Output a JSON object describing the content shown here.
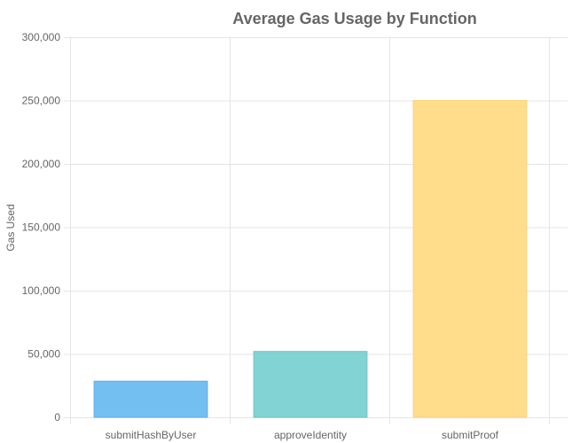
{
  "chart_data": {
    "type": "bar",
    "title": "Average Gas Usage by Function",
    "xlabel": "",
    "ylabel": "Gas Used",
    "categories": [
      "submitHashByUser",
      "approveIdentity",
      "submitProof"
    ],
    "values": [
      28500,
      52000,
      250000
    ],
    "ylim": [
      0,
      300000
    ],
    "yticks": [
      0,
      50000,
      100000,
      150000,
      200000,
      250000,
      300000
    ],
    "ytick_labels": [
      "0",
      "50,000",
      "100,000",
      "150,000",
      "200,000",
      "250,000",
      "300,000"
    ],
    "grid": true,
    "legend": "none",
    "colors": {
      "fills": [
        "#74bff2",
        "#82d3d4",
        "#ffdd8a"
      ],
      "borders": [
        "#5aaeea",
        "#6cc7c8",
        "#fcd27a"
      ],
      "grid": "#e5e5e5",
      "text": "#666666"
    }
  }
}
